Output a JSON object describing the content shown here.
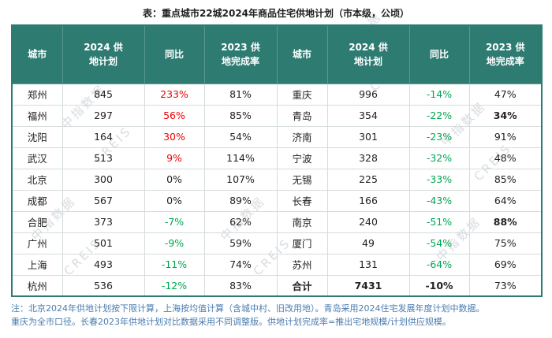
{
  "title": "表：重点城市22城2024年商品住宅供地计划（市本级，公顷）",
  "watermark": {
    "cn": "中指数据",
    "en": "CREIS"
  },
  "table": {
    "headers": [
      "城市",
      "2024 供地计划",
      "同比",
      "2023 供地完成率",
      "城市",
      "2024 供地计划",
      "同比",
      "2023 供地完成率"
    ],
    "rows": [
      [
        {
          "t": "郑州"
        },
        {
          "t": "845"
        },
        {
          "t": "233%",
          "c": "red"
        },
        {
          "t": "81%"
        },
        {
          "t": "重庆"
        },
        {
          "t": "996"
        },
        {
          "t": "-14%",
          "c": "green"
        },
        {
          "t": "47%"
        }
      ],
      [
        {
          "t": "福州"
        },
        {
          "t": "297"
        },
        {
          "t": "56%",
          "c": "red"
        },
        {
          "t": "85%"
        },
        {
          "t": "青岛"
        },
        {
          "t": "354"
        },
        {
          "t": "-22%",
          "c": "green"
        },
        {
          "t": "34%",
          "b": true
        }
      ],
      [
        {
          "t": "沈阳"
        },
        {
          "t": "164"
        },
        {
          "t": "30%",
          "c": "red"
        },
        {
          "t": "54%"
        },
        {
          "t": "济南"
        },
        {
          "t": "301"
        },
        {
          "t": "-23%",
          "c": "green"
        },
        {
          "t": "91%"
        }
      ],
      [
        {
          "t": "武汉"
        },
        {
          "t": "513"
        },
        {
          "t": "9%",
          "c": "red"
        },
        {
          "t": "114%"
        },
        {
          "t": "宁波"
        },
        {
          "t": "328"
        },
        {
          "t": "-32%",
          "c": "green"
        },
        {
          "t": "48%"
        }
      ],
      [
        {
          "t": "北京"
        },
        {
          "t": "300"
        },
        {
          "t": "0%"
        },
        {
          "t": "107%"
        },
        {
          "t": "无锡"
        },
        {
          "t": "225"
        },
        {
          "t": "-33%",
          "c": "green"
        },
        {
          "t": "85%"
        }
      ],
      [
        {
          "t": "成都"
        },
        {
          "t": "567"
        },
        {
          "t": "0%"
        },
        {
          "t": "89%"
        },
        {
          "t": "长春"
        },
        {
          "t": "166"
        },
        {
          "t": "-43%",
          "c": "green"
        },
        {
          "t": "64%"
        }
      ],
      [
        {
          "t": "合肥"
        },
        {
          "t": "373"
        },
        {
          "t": "-7%",
          "c": "green"
        },
        {
          "t": "62%"
        },
        {
          "t": "南京"
        },
        {
          "t": "240"
        },
        {
          "t": "-51%",
          "c": "green"
        },
        {
          "t": "88%",
          "b": true
        }
      ],
      [
        {
          "t": "广州"
        },
        {
          "t": "501"
        },
        {
          "t": "-9%",
          "c": "green"
        },
        {
          "t": "59%"
        },
        {
          "t": "厦门"
        },
        {
          "t": "49"
        },
        {
          "t": "-54%",
          "c": "green"
        },
        {
          "t": "75%"
        }
      ],
      [
        {
          "t": "上海"
        },
        {
          "t": "493"
        },
        {
          "t": "-11%",
          "c": "green"
        },
        {
          "t": "74%"
        },
        {
          "t": "苏州"
        },
        {
          "t": "131"
        },
        {
          "t": "-64%",
          "c": "green"
        },
        {
          "t": "69%"
        }
      ],
      [
        {
          "t": "杭州"
        },
        {
          "t": "536"
        },
        {
          "t": "-12%",
          "c": "green"
        },
        {
          "t": "83%"
        },
        {
          "t": "合计",
          "b": true
        },
        {
          "t": "7431",
          "b": true
        },
        {
          "t": "-10%",
          "b": true
        },
        {
          "t": "73%"
        }
      ]
    ]
  },
  "notes": [
    "注：北京2024年供地计划按下限计算，上海按均值计算（含城中村、旧改用地）。青岛采用2024住宅发展年度计划中数据。",
    "重庆为全市口径。长春2023年供地计划对比数据采用不同调整版。供地计划完成率=推出宅地规模/计划供应规模。"
  ],
  "colors": {
    "header_bg": "#2E7B72",
    "positive": "#ee0000",
    "negative": "#00A651",
    "note_text": "#4A7CB0"
  },
  "chart_data": {
    "type": "table",
    "title": "表：重点城市22城2024年商品住宅供地计划（市本级，公顷）",
    "columns": [
      "城市",
      "2024供地计划",
      "同比",
      "2023供地完成率"
    ],
    "rows": [
      [
        "郑州",
        845,
        "233%",
        "81%"
      ],
      [
        "福州",
        297,
        "56%",
        "85%"
      ],
      [
        "沈阳",
        164,
        "30%",
        "54%"
      ],
      [
        "武汉",
        513,
        "9%",
        "114%"
      ],
      [
        "北京",
        300,
        "0%",
        "107%"
      ],
      [
        "成都",
        567,
        "0%",
        "89%"
      ],
      [
        "合肥",
        373,
        "-7%",
        "62%"
      ],
      [
        "广州",
        501,
        "-9%",
        "59%"
      ],
      [
        "上海",
        493,
        "-11%",
        "74%"
      ],
      [
        "杭州",
        536,
        "-12%",
        "83%"
      ],
      [
        "重庆",
        996,
        "-14%",
        "47%"
      ],
      [
        "青岛",
        354,
        "-22%",
        "34%"
      ],
      [
        "济南",
        301,
        "-23%",
        "91%"
      ],
      [
        "宁波",
        328,
        "-32%",
        "48%"
      ],
      [
        "无锡",
        225,
        "-33%",
        "85%"
      ],
      [
        "长春",
        166,
        "-43%",
        "64%"
      ],
      [
        "南京",
        240,
        "-51%",
        "88%"
      ],
      [
        "厦门",
        49,
        "-54%",
        "75%"
      ],
      [
        "苏州",
        131,
        "-64%",
        "69%"
      ],
      [
        "合计",
        7431,
        "-10%",
        "73%"
      ]
    ]
  }
}
